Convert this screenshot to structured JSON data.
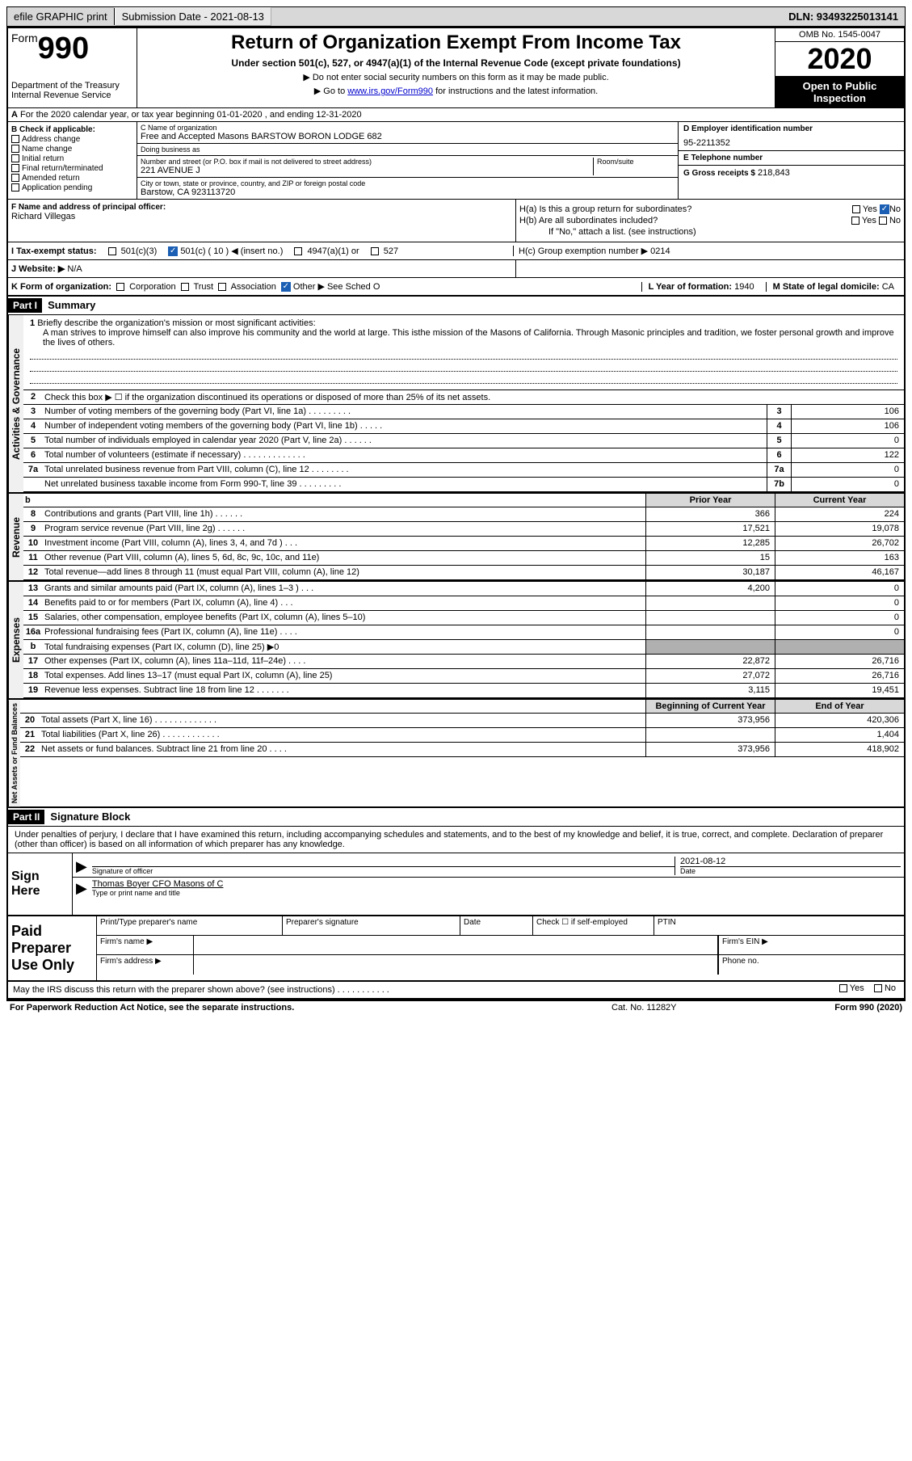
{
  "top_bar": {
    "efile": "efile GRAPHIC print",
    "submission_label": "Submission Date - 2021-08-13",
    "dln": "DLN: 93493225013141"
  },
  "header": {
    "form_word": "Form",
    "form_number": "990",
    "dept1": "Department of the Treasury",
    "dept2": "Internal Revenue Service",
    "title": "Return of Organization Exempt From Income Tax",
    "subtitle": "Under section 501(c), 527, or 4947(a)(1) of the Internal Revenue Code (except private foundations)",
    "note1": "▶ Do not enter social security numbers on this form as it may be made public.",
    "note2_prefix": "▶ Go to ",
    "note2_link": "www.irs.gov/Form990",
    "note2_suffix": " for instructions and the latest information.",
    "omb": "OMB No. 1545-0047",
    "year": "2020",
    "inspection": "Open to Public Inspection"
  },
  "row_a": "For the 2020 calendar year, or tax year beginning 01-01-2020    , and ending 12-31-2020",
  "section_b": {
    "title": "B Check if applicable:",
    "opts": [
      "Address change",
      "Name change",
      "Initial return",
      "Final return/terminated",
      "Amended return",
      "Application pending"
    ]
  },
  "section_c": {
    "name_label": "C Name of organization",
    "name": "Free and Accepted Masons BARSTOW BORON LODGE 682",
    "dba_label": "Doing business as",
    "dba": "",
    "addr_label": "Number and street (or P.O. box if mail is not delivered to street address)",
    "room_label": "Room/suite",
    "addr": "221 AVENUE J",
    "city_label": "City or town, state or province, country, and ZIP or foreign postal code",
    "city": "Barstow, CA  923113720"
  },
  "section_d": {
    "label": "D Employer identification number",
    "value": "95-2211352"
  },
  "section_e": {
    "label": "E Telephone number",
    "value": ""
  },
  "section_g": {
    "label": "G Gross receipts $",
    "value": "218,843"
  },
  "section_f": {
    "label": "F  Name and address of principal officer:",
    "value": "Richard Villegas"
  },
  "section_h": {
    "ha": "H(a)  Is this a group return for subordinates?",
    "hb": "H(b)  Are all subordinates included?",
    "hb_note": "If \"No,\" attach a list. (see instructions)",
    "hc": "H(c)  Group exemption number ▶   0214",
    "yes": "Yes",
    "no": "No"
  },
  "tax_exempt": {
    "label": "I   Tax-exempt status:",
    "opt1": "501(c)(3)",
    "opt2": "501(c) ( 10 ) ◀ (insert no.)",
    "opt3": "4947(a)(1) or",
    "opt4": "527"
  },
  "website": {
    "label": "J   Website: ▶",
    "value": "N/A"
  },
  "row_k": {
    "label": "K Form of organization:",
    "opts": [
      "Corporation",
      "Trust",
      "Association",
      "Other ▶ See Sched O"
    ],
    "l_label": "L Year of formation:",
    "l_val": "1940",
    "m_label": "M State of legal domicile:",
    "m_val": "CA"
  },
  "part1": {
    "part": "Part I",
    "title": "Summary",
    "sections": {
      "activities": "Activities & Governance",
      "revenue": "Revenue",
      "expenses": "Expenses",
      "netassets": "Net Assets or Fund Balances"
    },
    "q1_label": "Briefly describe the organization's mission or most significant activities:",
    "q1_text": "A man strives to improve himself can also improve his community and the world at large. This isthe mission of the Masons of California. Through Masonic principles and tradition, we foster personal growth and improve the lives of others.",
    "q2": "Check this box ▶ ☐  if the organization discontinued its operations or disposed of more than 25% of its net assets.",
    "rows_gov": [
      {
        "n": "3",
        "t": "Number of voting members of the governing body (Part VI, line 1a)  .   .   .   .   .   .   .   .   .",
        "box": "3",
        "v": "106"
      },
      {
        "n": "4",
        "t": "Number of independent voting members of the governing body (Part VI, line 1b)  .   .   .   .   .",
        "box": "4",
        "v": "106"
      },
      {
        "n": "5",
        "t": "Total number of individuals employed in calendar year 2020 (Part V, line 2a)  .   .   .   .   .   .",
        "box": "5",
        "v": "0"
      },
      {
        "n": "6",
        "t": "Total number of volunteers (estimate if necessary)   .   .   .   .   .   .   .   .   .   .   .   .   .",
        "box": "6",
        "v": "122"
      },
      {
        "n": "7a",
        "t": "Total unrelated business revenue from Part VIII, column (C), line 12  .   .   .   .   .   .   .   .",
        "box": "7a",
        "v": "0"
      },
      {
        "n": "",
        "t": "Net unrelated business taxable income from Form 990-T, line 39   .   .   .   .   .   .   .   .   .",
        "box": "7b",
        "v": "0"
      }
    ],
    "col_headers": {
      "b": "b",
      "prior": "Prior Year",
      "current": "Current Year"
    },
    "rows_rev": [
      {
        "n": "8",
        "t": "Contributions and grants (Part VIII, line 1h)    .   .   .   .   .   .",
        "p": "366",
        "c": "224"
      },
      {
        "n": "9",
        "t": "Program service revenue (Part VIII, line 2g)   .   .   .   .   .   .",
        "p": "17,521",
        "c": "19,078"
      },
      {
        "n": "10",
        "t": "Investment income (Part VIII, column (A), lines 3, 4, and 7d )   .   .   .",
        "p": "12,285",
        "c": "26,702"
      },
      {
        "n": "11",
        "t": "Other revenue (Part VIII, column (A), lines 5, 6d, 8c, 9c, 10c, and 11e)",
        "p": "15",
        "c": "163"
      },
      {
        "n": "12",
        "t": "Total revenue—add lines 8 through 11 (must equal Part VIII, column (A), line 12)",
        "p": "30,187",
        "c": "46,167"
      }
    ],
    "rows_exp": [
      {
        "n": "13",
        "t": "Grants and similar amounts paid (Part IX, column (A), lines 1–3 )   .   .   .",
        "p": "4,200",
        "c": "0"
      },
      {
        "n": "14",
        "t": "Benefits paid to or for members (Part IX, column (A), line 4)   .   .   .",
        "p": "",
        "c": "0"
      },
      {
        "n": "15",
        "t": "Salaries, other compensation, employee benefits (Part IX, column (A), lines 5–10)",
        "p": "",
        "c": "0"
      },
      {
        "n": "16a",
        "t": "Professional fundraising fees (Part IX, column (A), line 11e)   .   .   .   .",
        "p": "",
        "c": "0"
      },
      {
        "n": "b",
        "t": "Total fundraising expenses (Part IX, column (D), line 25) ▶0",
        "p": "grey",
        "c": "grey"
      },
      {
        "n": "17",
        "t": "Other expenses (Part IX, column (A), lines 11a–11d, 11f–24e)   .   .   .   .",
        "p": "22,872",
        "c": "26,716"
      },
      {
        "n": "18",
        "t": "Total expenses. Add lines 13–17 (must equal Part IX, column (A), line 25)",
        "p": "27,072",
        "c": "26,716"
      },
      {
        "n": "19",
        "t": "Revenue less expenses. Subtract line 18 from line 12  .   .   .   .   .   .   .",
        "p": "3,115",
        "c": "19,451"
      }
    ],
    "col_headers2": {
      "begin": "Beginning of Current Year",
      "end": "End of Year"
    },
    "rows_net": [
      {
        "n": "20",
        "t": "Total assets (Part X, line 16)  .   .   .   .   .   .   .   .   .   .   .   .   .",
        "p": "373,956",
        "c": "420,306"
      },
      {
        "n": "21",
        "t": "Total liabilities (Part X, line 26)  .   .   .   .   .   .   .   .   .   .   .   .",
        "p": "",
        "c": "1,404"
      },
      {
        "n": "22",
        "t": "Net assets or fund balances. Subtract line 21 from line 20  .   .   .   .",
        "p": "373,956",
        "c": "418,902"
      }
    ]
  },
  "part2": {
    "part": "Part II",
    "title": "Signature Block",
    "declaration": "Under penalties of perjury, I declare that I have examined this return, including accompanying schedules and statements, and to the best of my knowledge and belief, it is true, correct, and complete. Declaration of preparer (other than officer) is based on all information of which preparer has any knowledge.",
    "sign_here": "Sign Here",
    "sig_officer_label": "Signature of officer",
    "sig_date_label": "Date",
    "sig_date": "2021-08-12",
    "officer_name": "Thomas Boyer  CFO Masons of C",
    "type_label": "Type or print name and title",
    "paid": "Paid Preparer Use Only",
    "prep_name_label": "Print/Type preparer's name",
    "prep_sig_label": "Preparer's signature",
    "date_label": "Date",
    "check_label": "Check ☐ if self-employed",
    "ptin_label": "PTIN",
    "firm_name_label": "Firm's name    ▶",
    "firm_ein_label": "Firm's EIN ▶",
    "firm_addr_label": "Firm's address ▶",
    "phone_label": "Phone no.",
    "discuss": "May the IRS discuss this return with the preparer shown above? (see instructions)   .   .   .   .   .   .   .   .   .   .   .",
    "yes": "Yes",
    "no": "No"
  },
  "footer": {
    "left": "For Paperwork Reduction Act Notice, see the separate instructions.",
    "mid": "Cat. No. 11282Y",
    "right": "Form 990 (2020)"
  },
  "colors": {
    "header_grey": "#d8d8d8",
    "black": "#000000",
    "link_blue": "#0000cc",
    "check_blue": "#1a5fb4",
    "grey_cell": "#b0b0b0",
    "label_bg": "#f0f0f0"
  }
}
